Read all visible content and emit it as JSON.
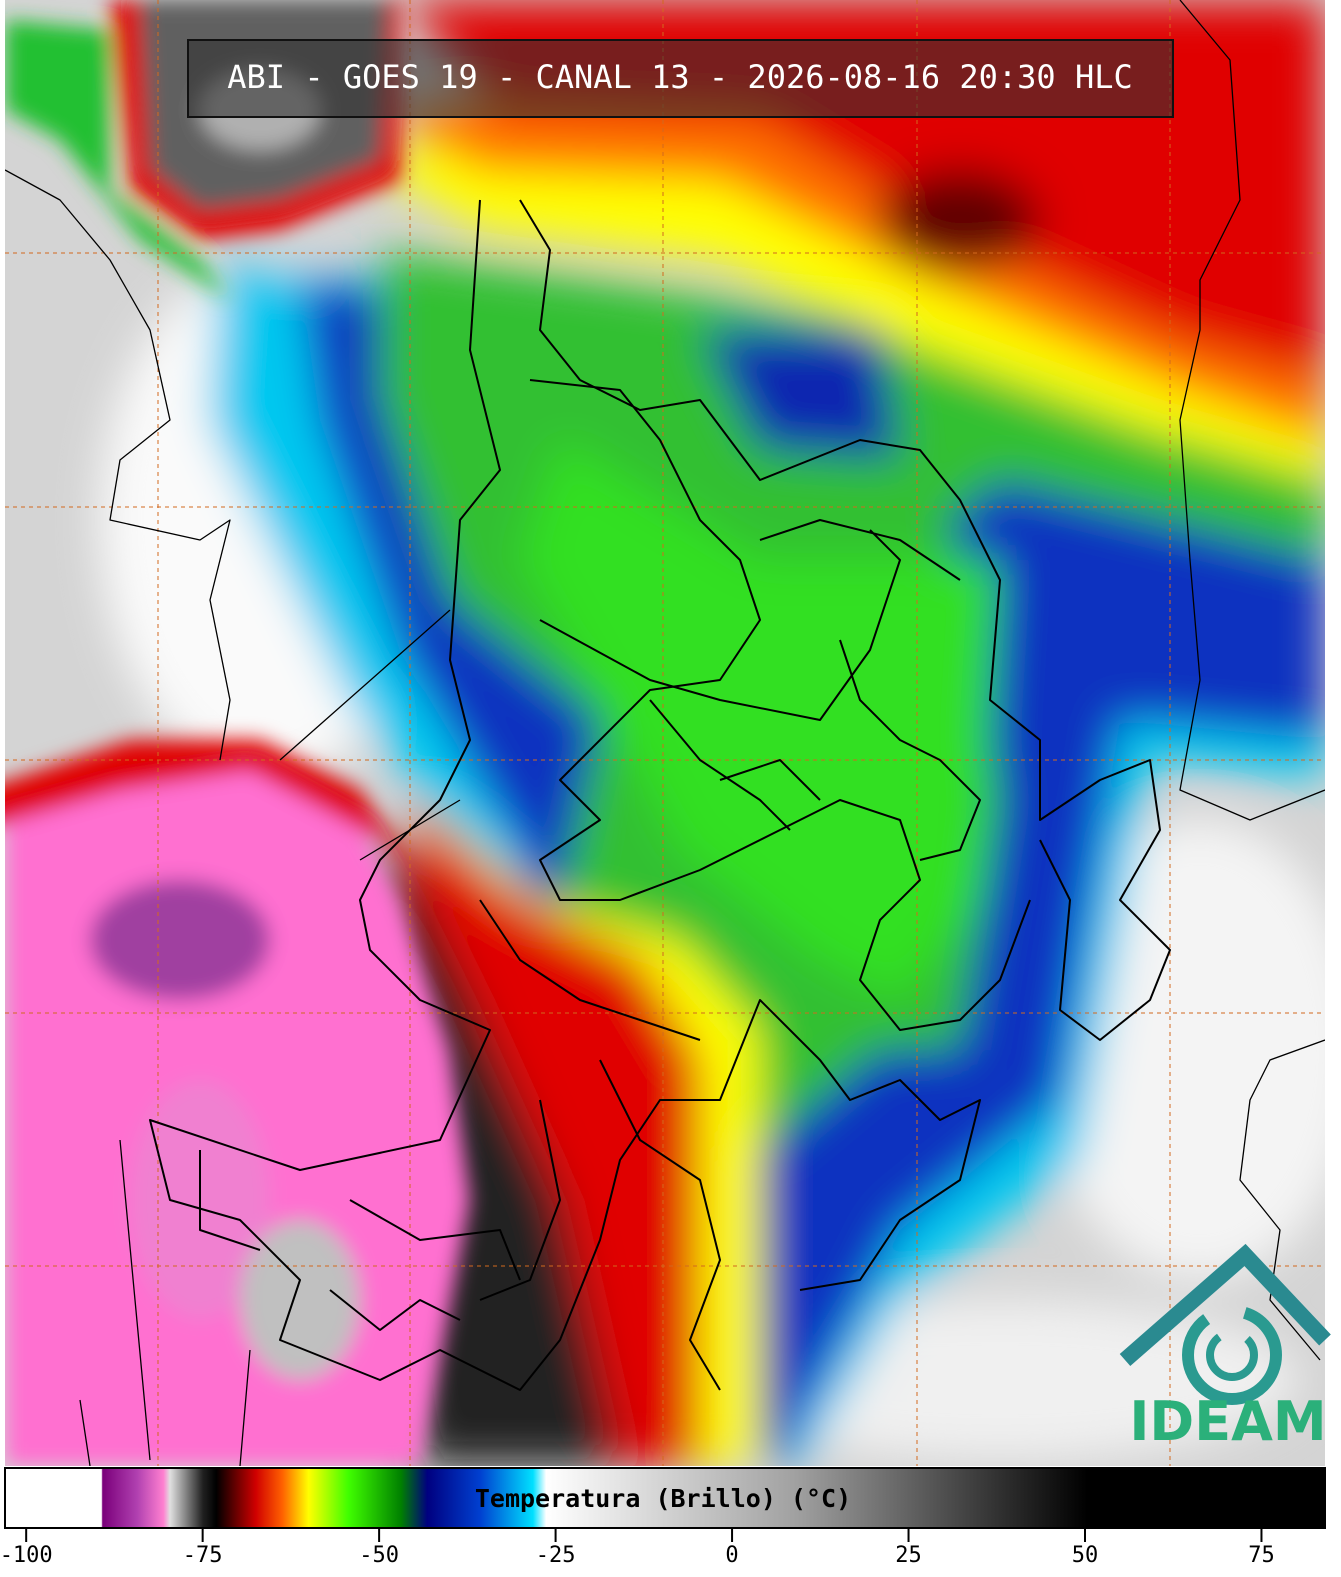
{
  "header": {
    "title": "ABI - GOES 19 - CANAL 13 - 2026-08-16 20:30 HLC"
  },
  "colorbar": {
    "label": "Temperatura (Brillo) (°C)",
    "lim": [
      -103,
      84
    ],
    "ticks": [
      -100,
      -75,
      -50,
      -25,
      0,
      25,
      50,
      75
    ]
  },
  "logo": {
    "text": "IDEAM"
  }
}
